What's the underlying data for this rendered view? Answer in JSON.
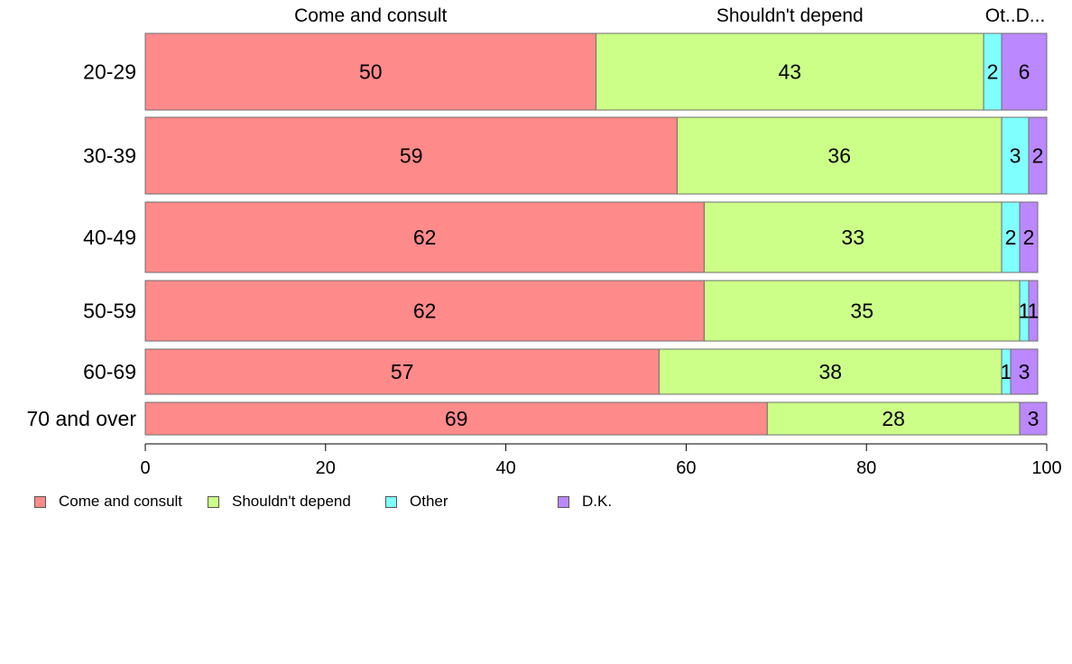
{
  "chart_data": {
    "type": "bar",
    "orientation": "horizontal",
    "stacked": true,
    "categories": [
      "20-29",
      "30-39",
      "40-49",
      "50-59",
      "60-69",
      "70 and over"
    ],
    "series": [
      {
        "name": "Come and consult",
        "color": "#ff8a8a",
        "values": [
          50,
          59,
          62,
          62,
          57,
          69
        ]
      },
      {
        "name": "Shouldn't depend",
        "color": "#ccff88",
        "values": [
          43,
          36,
          33,
          35,
          38,
          28
        ]
      },
      {
        "name": "Other",
        "color": "#80ffff",
        "values": [
          2,
          3,
          2,
          1,
          1,
          0
        ]
      },
      {
        "name": "D.K.",
        "color": "#bb88ff",
        "values": [
          6,
          2,
          2,
          1,
          3,
          3
        ]
      }
    ],
    "top_labels": [
      "Come and consult",
      "Shouldn't depend",
      "Ot..D..."
    ],
    "x_ticks": [
      "0",
      "20",
      "40",
      "60",
      "80",
      "100"
    ],
    "xlim": [
      0,
      100
    ],
    "grid": false,
    "legend_position": "bottom-left"
  }
}
